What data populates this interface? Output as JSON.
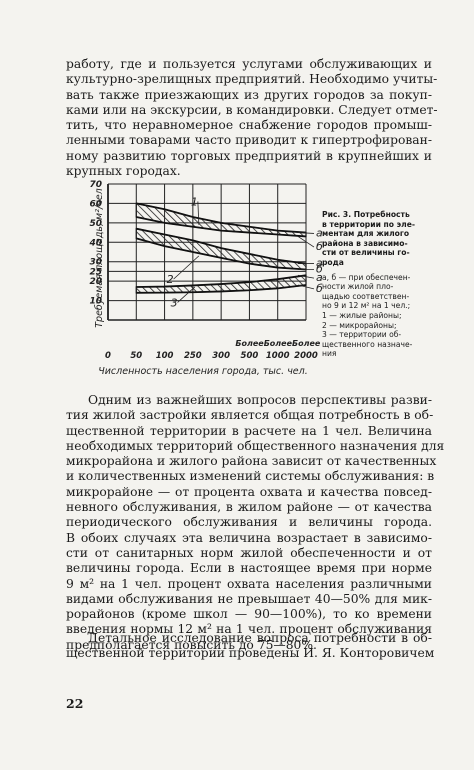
{
  "text_top": [
    "работу, где и пользуется услугами обслуживающих и",
    "культурно-зрелищных предприятий. Необходимо учиты-",
    "вать также приезжающих из других городов за покуп-",
    "ками или на экскурсии, в командировки. Следует отмет-",
    "тить, что неравномерное снабжение городов промыш-",
    "ленными товарами часто приводит к гипертрофирован-",
    "ному развитию торговых предприятий в крупнейших и",
    "крупных городах."
  ],
  "figure": {
    "caption_title": [
      "Рис. 3. Потребность",
      "в территории по эле-",
      "ментам для жилого",
      "района в зависимо-",
      "сти от величины го-",
      "рода"
    ],
    "caption_legend": [
      "а, б — при обеспечен-",
      "ности жилой пло-",
      "щадью соответствен-",
      "но 9 и 12 м² на 1 чел.;",
      "1 — жилые районы;",
      "2 — микрорайоны;",
      "3 — территории об-",
      "щественного назначе-",
      "ния"
    ],
    "ylabel": "Требуемая площадь, м²/чел",
    "xlabel": "Численность населения города, тыс. чел.",
    "top_labels": [
      "Более",
      "Более",
      "Более"
    ],
    "curve_labels": [
      "1",
      "2",
      "3"
    ],
    "right_labels": [
      "а",
      "б",
      "а",
      "б",
      "а",
      "б"
    ]
  },
  "chart_data": {
    "type": "area",
    "title": "",
    "xlabel": "Численность населения города, тыс. чел.",
    "ylabel": "Требуемая площадь, м²/чел",
    "x_categories": [
      "0",
      "50",
      "100",
      "250",
      "300",
      "500",
      "1000",
      "2000"
    ],
    "y_ticks": [
      "10",
      "20",
      "25",
      "30",
      "40",
      "50",
      "60",
      "70"
    ],
    "y_tick_values": [
      10,
      20,
      25,
      30,
      40,
      50,
      60,
      70
    ],
    "ylim": [
      0,
      70
    ],
    "grid": true,
    "series": [
      {
        "name": "1",
        "upper": [
          null,
          60,
          57,
          53,
          50,
          48,
          46,
          45
        ],
        "lower": [
          null,
          53,
          50,
          48,
          46,
          45,
          44,
          43
        ]
      },
      {
        "name": "2",
        "upper": [
          null,
          47,
          44,
          41,
          37,
          34,
          31,
          29
        ],
        "lower": [
          null,
          42,
          38,
          35,
          32,
          29,
          27,
          26
        ]
      },
      {
        "name": "3",
        "upper": [
          null,
          17,
          17.2,
          17.8,
          18.5,
          19.5,
          21,
          23
        ],
        "lower": [
          null,
          14,
          14.1,
          14.3,
          14.7,
          15.3,
          16.3,
          18
        ]
      }
    ]
  },
  "text_mid": [
    "Одним из важнейших вопросов перспективы разви-",
    "тия жилой застройки является общая потребность в об-",
    "щественной территории в расчете на 1 чел. Величина",
    "необходимых территорий общественного назначения для",
    "микрорайона и жилого района зависит от качественных",
    "и количественных изменений системы обслуживания: в",
    "микрорайоне — от процента охвата и качества повсед-",
    "невного обслуживания, в жилом районе — от качества",
    "периодического обслуживания и величины города.",
    "В обоих случаях эта величина возрастает в зависимо-",
    "сти от санитарных норм жилой обеспеченности и от",
    "величины города. Если в настоящее время при норме",
    "9 м² на 1 чел. процент охвата населения различными",
    "видами обслуживания не превышает 40—50% для мик-",
    "рорайонов (кроме школ — 90—100%), то ко времени",
    "введения нормы 12 м² на 1 чел. процент обслуживания",
    "предполагается повысить до 75—80%."
  ],
  "text_bottom": [
    "Детальное исследование вопроса потребности в об-",
    "щественной территории проведены И. Я. Конторовичем"
  ],
  "page_number": "22"
}
